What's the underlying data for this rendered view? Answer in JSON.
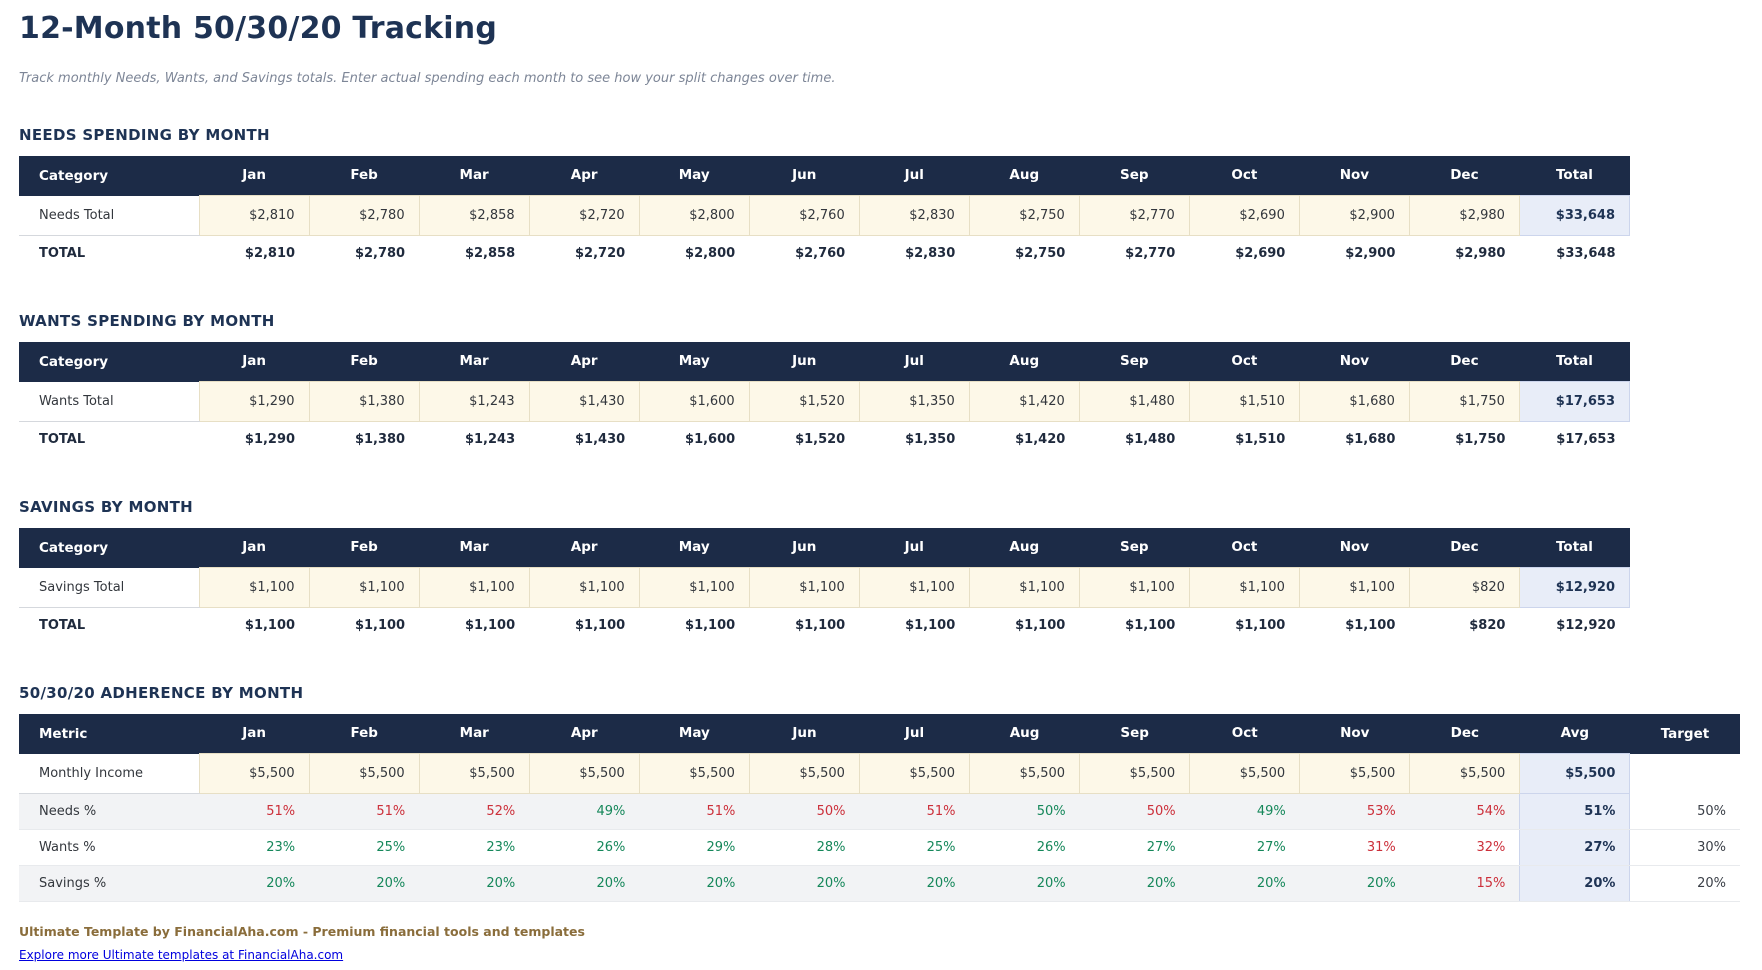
{
  "page": {
    "title": "12-Month 50/30/20 Tracking",
    "subtitle": "Track monthly Needs, Wants, and Savings totals. Enter actual spending each month to see how your split changes over time."
  },
  "months": [
    "Jan",
    "Feb",
    "Mar",
    "Apr",
    "May",
    "Jun",
    "Jul",
    "Aug",
    "Sep",
    "Oct",
    "Nov",
    "Dec"
  ],
  "ui": {
    "category_header": "Category",
    "metric_header": "Metric",
    "total_header": "Total",
    "avg_header": "Avg",
    "target_header": "Target",
    "total_row_label": "TOTAL"
  },
  "colors": {
    "table_header_bg": "#1c2b47",
    "heading_text": "#1e3354",
    "input_cell_bg": "#fdf8e8",
    "summary_cell_bg": "#e8edf8",
    "over_target_red": "#cc2f3a",
    "on_target_green": "#15875a",
    "footer_brand_brown": "#8a6d3b",
    "link_blue": "#0000de"
  },
  "tables": [
    {
      "id": "needs",
      "heading": "NEEDS SPENDING BY MONTH",
      "row_label": "Needs Total",
      "values": [
        "$2,810",
        "$2,780",
        "$2,858",
        "$2,720",
        "$2,800",
        "$2,760",
        "$2,830",
        "$2,750",
        "$2,770",
        "$2,690",
        "$2,900",
        "$2,980"
      ],
      "total": "$33,648"
    },
    {
      "id": "wants",
      "heading": "WANTS SPENDING BY MONTH",
      "row_label": "Wants Total",
      "values": [
        "$1,290",
        "$1,380",
        "$1,243",
        "$1,430",
        "$1,600",
        "$1,520",
        "$1,350",
        "$1,420",
        "$1,480",
        "$1,510",
        "$1,680",
        "$1,750"
      ],
      "total": "$17,653"
    },
    {
      "id": "savings",
      "heading": "SAVINGS BY MONTH",
      "row_label": "Savings Total",
      "values": [
        "$1,100",
        "$1,100",
        "$1,100",
        "$1,100",
        "$1,100",
        "$1,100",
        "$1,100",
        "$1,100",
        "$1,100",
        "$1,100",
        "$1,100",
        "$820"
      ],
      "total": "$12,920"
    }
  ],
  "adherence": {
    "id": "adherence",
    "heading": "50/30/20 ADHERENCE BY MONTH",
    "rows": [
      {
        "label": "Monthly Income",
        "kind": "income",
        "values": [
          "$5,500",
          "$5,500",
          "$5,500",
          "$5,500",
          "$5,500",
          "$5,500",
          "$5,500",
          "$5,500",
          "$5,500",
          "$5,500",
          "$5,500",
          "$5,500"
        ],
        "avg": "$5,500",
        "target": ""
      },
      {
        "label": "Needs %",
        "kind": "pct",
        "values": [
          "51%",
          "51%",
          "52%",
          "49%",
          "51%",
          "50%",
          "51%",
          "50%",
          "50%",
          "49%",
          "53%",
          "54%"
        ],
        "colors": [
          "red",
          "red",
          "red",
          "green",
          "red",
          "red",
          "red",
          "green",
          "red",
          "green",
          "red",
          "red"
        ],
        "avg": "51%",
        "target": "50%"
      },
      {
        "label": "Wants %",
        "kind": "pct",
        "values": [
          "23%",
          "25%",
          "23%",
          "26%",
          "29%",
          "28%",
          "25%",
          "26%",
          "27%",
          "27%",
          "31%",
          "32%"
        ],
        "colors": [
          "green",
          "green",
          "green",
          "green",
          "green",
          "green",
          "green",
          "green",
          "green",
          "green",
          "red",
          "red"
        ],
        "avg": "27%",
        "target": "30%"
      },
      {
        "label": "Savings %",
        "kind": "pct",
        "values": [
          "20%",
          "20%",
          "20%",
          "20%",
          "20%",
          "20%",
          "20%",
          "20%",
          "20%",
          "20%",
          "20%",
          "15%"
        ],
        "colors": [
          "green",
          "green",
          "green",
          "green",
          "green",
          "green",
          "green",
          "green",
          "green",
          "green",
          "green",
          "red"
        ],
        "avg": "20%",
        "target": "20%"
      }
    ]
  },
  "footer": {
    "brand_line": "Ultimate Template by FinancialAha.com - Premium financial tools and templates",
    "link_label": "Explore more Ultimate templates at FinancialAha.com"
  }
}
